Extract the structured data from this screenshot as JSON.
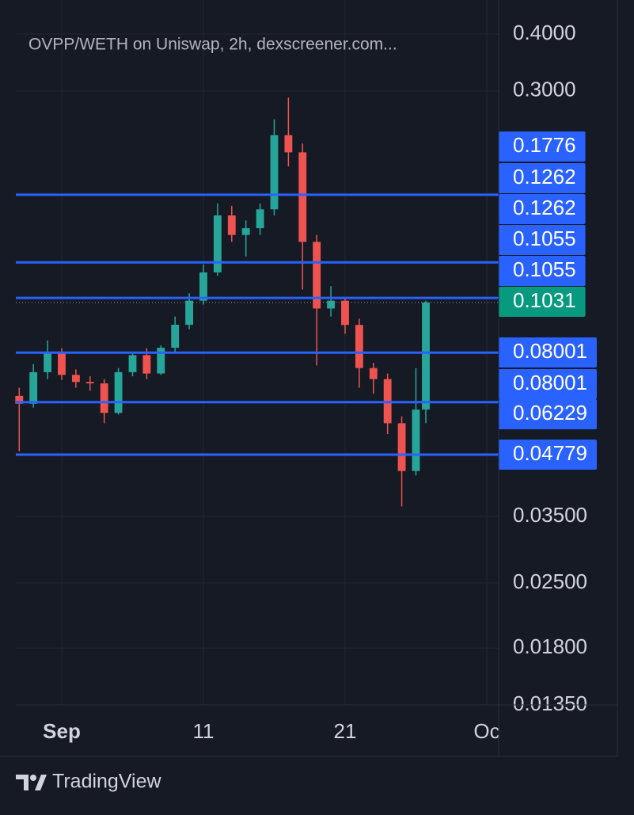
{
  "chart_data": {
    "type": "candlestick",
    "title": "OVPP/WETH on Uniswap, 2h, dexscreener.com...",
    "brand": "TradingView",
    "log_scale": true,
    "grid": true,
    "up_color": "#26a69a",
    "down_color": "#ef5350",
    "line_color": "#2962ff",
    "last_color": "#089981",
    "x": [
      -2,
      -1,
      0,
      1,
      2,
      3,
      4,
      5,
      6,
      7,
      8,
      9,
      10,
      11,
      12,
      13,
      14,
      15,
      16,
      17,
      18,
      19,
      20,
      21,
      22,
      23,
      24,
      25,
      26,
      26.7
    ],
    "open": [
      0.0643,
      0.0618,
      0.0725,
      0.08,
      0.0715,
      0.069,
      0.0685,
      0.059,
      0.0725,
      0.079,
      0.072,
      0.082,
      0.0921,
      0.104,
      0.12,
      0.16,
      0.145,
      0.15,
      0.165,
      0.24,
      0.22,
      0.14,
      0.1,
      0.104,
      0.092,
      0.074,
      0.07,
      0.056,
      0.044,
      0.06
    ],
    "high": [
      0.067,
      0.0755,
      0.0851,
      0.0818,
      0.0735,
      0.071,
      0.07,
      0.074,
      0.08,
      0.0818,
      0.083,
      0.096,
      0.108,
      0.125,
      0.17,
      0.168,
      0.156,
      0.17,
      0.26,
      0.29,
      0.23,
      0.145,
      0.112,
      0.106,
      0.095,
      0.076,
      0.072,
      0.058,
      0.074,
      0.104
    ],
    "low": [
      0.0486,
      0.0606,
      0.07,
      0.0697,
      0.067,
      0.066,
      0.056,
      0.0585,
      0.071,
      0.07,
      0.0715,
      0.08,
      0.09,
      0.102,
      0.118,
      0.14,
      0.13,
      0.145,
      0.16,
      0.205,
      0.11,
      0.075,
      0.096,
      0.088,
      0.067,
      0.065,
      0.053,
      0.0368,
      0.043,
      0.056
    ],
    "close": [
      0.0618,
      0.0725,
      0.08,
      0.0715,
      0.069,
      0.0685,
      0.059,
      0.0725,
      0.079,
      0.072,
      0.082,
      0.0921,
      0.104,
      0.12,
      0.16,
      0.145,
      0.15,
      0.165,
      0.24,
      0.22,
      0.14,
      0.1,
      0.104,
      0.092,
      0.074,
      0.07,
      0.056,
      0.044,
      0.06,
      0.1031
    ],
    "xlim": [
      -2.24,
      31.84
    ],
    "xticks": [
      {
        "value": 1,
        "label": "Sep"
      },
      11,
      21,
      {
        "value": 31,
        "label": "Oc"
      }
    ],
    "ylim": [
      0.0135,
      0.475
    ],
    "yticks": [
      {
        "value": 0.4,
        "label": "0.4000"
      },
      {
        "value": 0.3,
        "label": "0.3000"
      },
      {
        "value": 0.035,
        "label": "0.03500"
      },
      {
        "value": 0.025,
        "label": "0.02500"
      },
      {
        "value": 0.018,
        "label": "0.01800"
      },
      {
        "value": 0.0135,
        "label": "0.01350"
      }
    ],
    "price_lines": [
      0.1776,
      0.1262,
      0.1055,
      0.08001,
      0.06229,
      0.04779
    ],
    "price_labels": [
      0.1776,
      0.1262,
      0.1262,
      0.1055,
      0.1055,
      0.08001,
      0.08001,
      0.06229,
      0.04779
    ],
    "last_price": 0.1031
  }
}
